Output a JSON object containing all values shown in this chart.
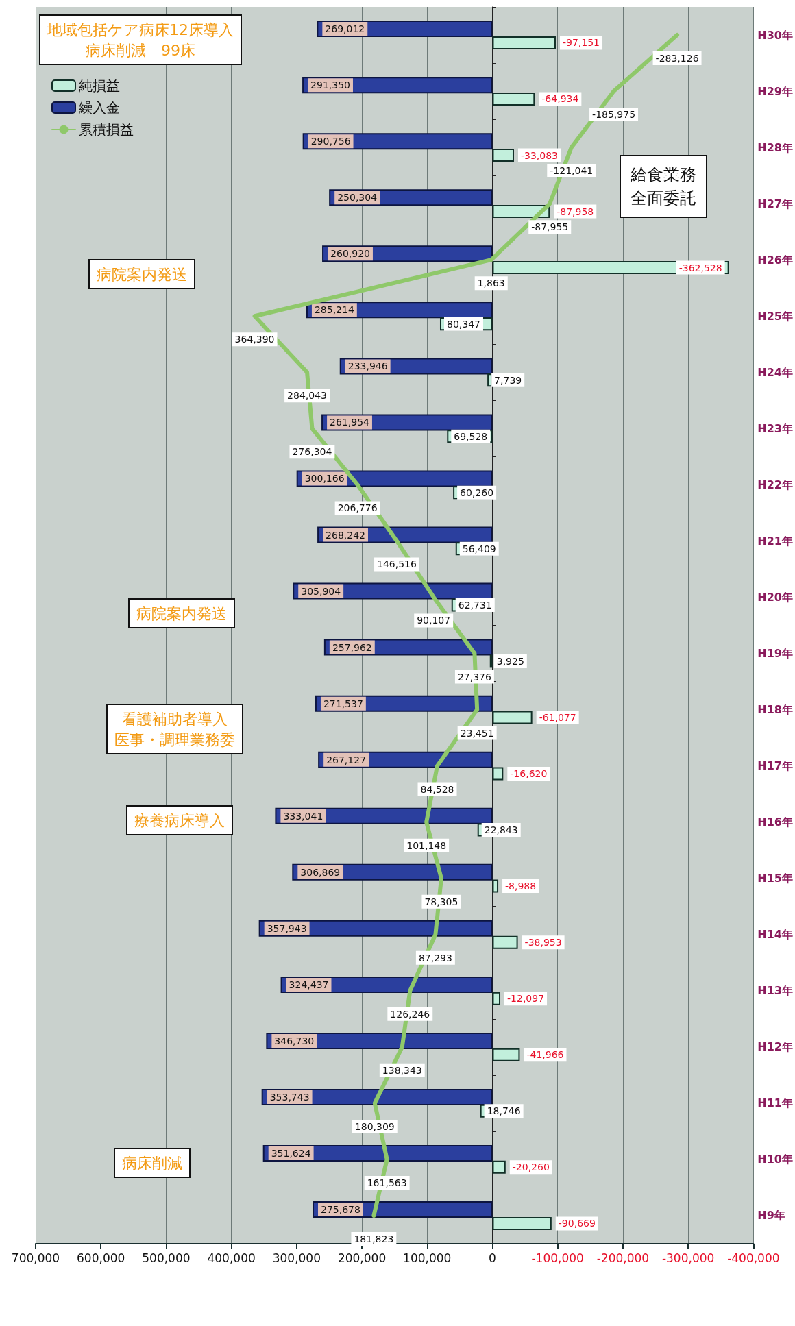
{
  "chart_data": {
    "type": "bar",
    "orientation": "horizontal",
    "categories": [
      "H30年",
      "H29年",
      "H28年",
      "H27年",
      "H26年",
      "H25年",
      "H24年",
      "H23年",
      "H22年",
      "H21年",
      "H20年",
      "H19年",
      "H18年",
      "H17年",
      "H16年",
      "H15年",
      "H14年",
      "H13年",
      "H12年",
      "H11年",
      "H10年",
      "H9年"
    ],
    "series": [
      {
        "name": "純損益",
        "color": "#c2efdc",
        "values": [
          -97151,
          -64934,
          -33083,
          -87958,
          -362528,
          80347,
          7739,
          69528,
          60260,
          56409,
          62731,
          3925,
          -61077,
          -16620,
          22843,
          -8988,
          -38953,
          -12097,
          -41966,
          18746,
          -20260,
          -90669
        ],
        "value_labels": [
          "-97,151",
          "-64,934",
          "-33,083",
          "-87,958",
          "-362,528",
          "80,347",
          "7,739",
          "69,528",
          "60,260",
          "56,409",
          "62,731",
          "3,925",
          "-61,077",
          "-16,620",
          "22,843",
          "-8,988",
          "-38,953",
          "-12,097",
          "-41,966",
          "18,746",
          "-20,260",
          "-90,669"
        ]
      },
      {
        "name": "繰入金",
        "color": "#2b3f9e",
        "values": [
          269012,
          291350,
          290756,
          250304,
          260920,
          285214,
          233946,
          261954,
          300166,
          268242,
          305904,
          257962,
          271537,
          267127,
          333041,
          306869,
          357943,
          324437,
          346730,
          353743,
          351624,
          275678
        ],
        "value_labels": [
          "269,012",
          "291,350",
          "290,756",
          "250,304",
          "260,920",
          "285,214",
          "233,946",
          "261,954",
          "300,166",
          "268,242",
          "305,904",
          "257,962",
          "271,537",
          "267,127",
          "333,041",
          "306,869",
          "357,943",
          "324,437",
          "346,730",
          "353,743",
          "351,624",
          "275,678"
        ]
      },
      {
        "name": "累積損益",
        "type": "line",
        "color": "#8fc86a",
        "values": [
          -283126,
          -185975,
          -121041,
          -87955,
          1863,
          364390,
          284043,
          276304,
          206776,
          146516,
          90107,
          27376,
          23451,
          84528,
          101148,
          78305,
          87293,
          126246,
          138343,
          180309,
          161563,
          181823
        ],
        "value_labels": [
          "-283,126",
          "-185,975",
          "-121,041",
          "-87,955",
          "1,863",
          "364,390",
          "284,043",
          "276,304",
          "206,776",
          "146,516",
          "90,107",
          "27,376",
          "23,451",
          "84,528",
          "101,148",
          "78,305",
          "87,293",
          "126,246",
          "138,343",
          "180,309",
          "161,563",
          "181,823"
        ]
      }
    ],
    "xlim": [
      700000,
      -400000
    ],
    "xticks": [
      {
        "value": 700000,
        "label": "700,000"
      },
      {
        "value": 600000,
        "label": "600,000"
      },
      {
        "value": 500000,
        "label": "500,000"
      },
      {
        "value": 400000,
        "label": "400,000"
      },
      {
        "value": 300000,
        "label": "300,000"
      },
      {
        "value": 200000,
        "label": "200,000"
      },
      {
        "value": 100000,
        "label": "100,000"
      },
      {
        "value": 0,
        "label": "0"
      },
      {
        "value": -100000,
        "label": "-100,000"
      },
      {
        "value": -200000,
        "label": "-200,000"
      },
      {
        "value": -300000,
        "label": "-300,000"
      },
      {
        "value": -400000,
        "label": "-400,000"
      }
    ],
    "grid": "x",
    "legend": "top left",
    "marker": "none",
    "annotations": [
      "地域包括ケア病床12床導入",
      "病床削減　99床",
      "給食業務全面委託",
      "病院案内発送",
      "病院案内発送",
      "看護補助者導入",
      "医事・調理業務委",
      "療養病床導入",
      "病床削減"
    ]
  }
}
